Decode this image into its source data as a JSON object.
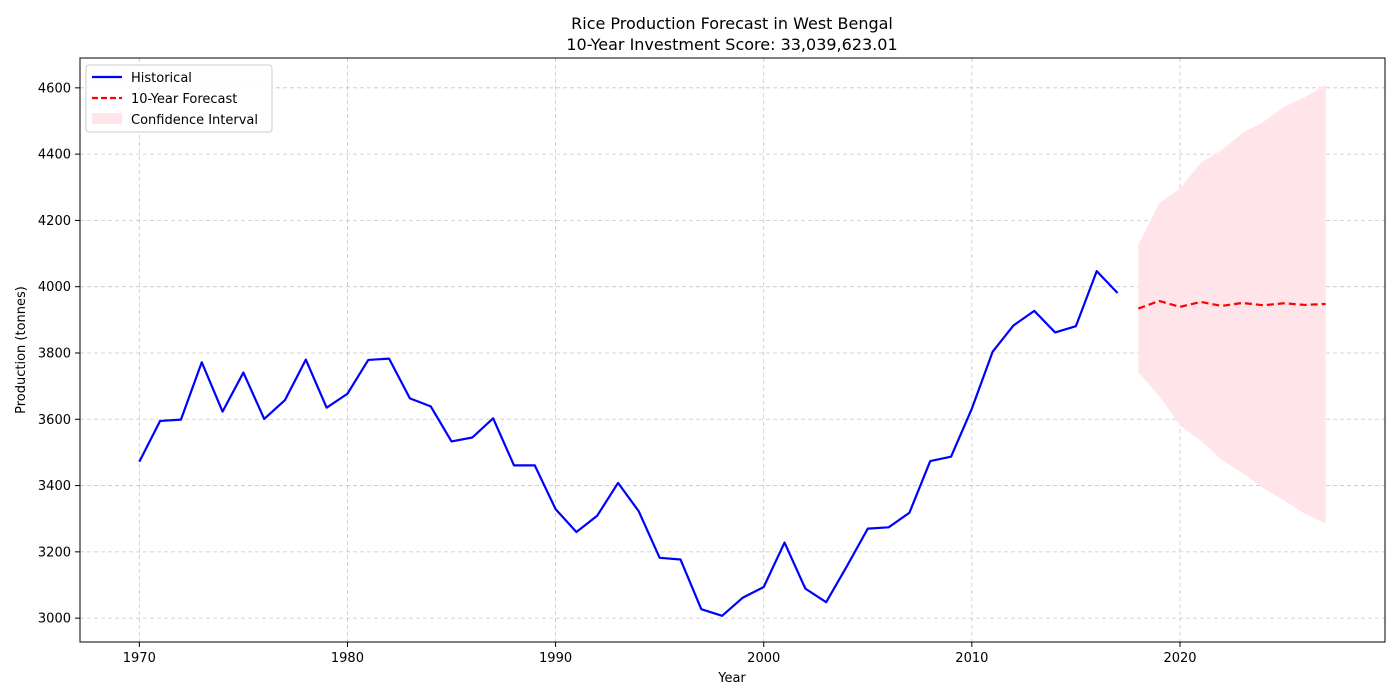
{
  "chart_data": {
    "type": "line",
    "title": "Rice Production Forecast in West Bengal",
    "subtitle": "10-Year Investment Score: 33,039,623.01",
    "xlabel": "Year",
    "ylabel": "Production (tonnes)",
    "xlim": [
      1967.15,
      2029.85
    ],
    "ylim": [
      2928,
      4690
    ],
    "x_ticks": [
      1970,
      1980,
      1990,
      2000,
      2010,
      2020
    ],
    "y_ticks": [
      3000,
      3200,
      3400,
      3600,
      3800,
      4000,
      4200,
      4400,
      4600
    ],
    "grid": true,
    "legend_position": "top-left",
    "series": [
      {
        "name": "Historical",
        "style": "solid",
        "color": "#0000ff",
        "x": [
          1970,
          1971,
          1972,
          1973,
          1974,
          1975,
          1976,
          1977,
          1978,
          1979,
          1980,
          1981,
          1982,
          1983,
          1984,
          1985,
          1986,
          1987,
          1988,
          1989,
          1990,
          1991,
          1992,
          1993,
          1994,
          1995,
          1996,
          1997,
          1998,
          1999,
          2000,
          2001,
          2002,
          2003,
          2004,
          2005,
          2006,
          2007,
          2008,
          2009,
          2010,
          2011,
          2012,
          2013,
          2014,
          2015,
          2016,
          2017
        ],
        "values": [
          3472,
          3595,
          3599,
          3772,
          3623,
          3741,
          3601,
          3658,
          3780,
          3635,
          3677,
          3779,
          3783,
          3663,
          3639,
          3533,
          3545,
          3603,
          3461,
          3461,
          3329,
          3260,
          3309,
          3408,
          3322,
          3182,
          3177,
          3027,
          3007,
          3062,
          3094,
          3228,
          3089,
          3048,
          3157,
          3270,
          3274,
          3318,
          3474,
          3487,
          3632,
          3804,
          3883,
          3927,
          3862,
          3881,
          4047,
          3981
        ]
      },
      {
        "name": "10-Year Forecast",
        "style": "dashed",
        "color": "#ff0000",
        "x": [
          2018,
          2019,
          2020,
          2021,
          2022,
          2023,
          2024,
          2025,
          2026,
          2027
        ],
        "values": [
          3934,
          3957,
          3939,
          3954,
          3942,
          3951,
          3944,
          3950,
          3945,
          3948
        ]
      }
    ],
    "confidence_interval": {
      "name": "Confidence Interval",
      "color": "#ffe4ea",
      "x": [
        2018,
        2019,
        2020,
        2021,
        2022,
        2023,
        2024,
        2025,
        2026,
        2027
      ],
      "lower": [
        3742,
        3670,
        3582,
        3535,
        3478,
        3438,
        3392,
        3355,
        3315,
        3285
      ],
      "upper": [
        4126,
        4252,
        4296,
        4374,
        4412,
        4464,
        4497,
        4542,
        4572,
        4610
      ]
    }
  }
}
